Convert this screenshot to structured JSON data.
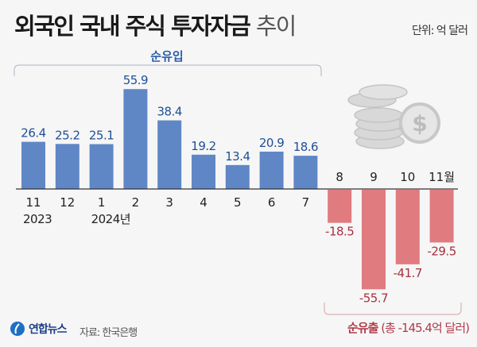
{
  "header": {
    "title_bold": "외국인 국내 주식 투자자금",
    "title_light": "추이",
    "unit": "단위: 억 달러"
  },
  "annotations": {
    "inflow": "순유입",
    "outflow_bold": "순유출",
    "outflow_total": "(총 -145.4억 달러)"
  },
  "footer": {
    "logo": "연합뉴스",
    "source": "자료: 한국은행"
  },
  "colors": {
    "positive": "#5f87c6",
    "negative": "#e07b7f",
    "positive_label": "#1f4f96",
    "negative_label": "#a8303f"
  },
  "chart_data": {
    "type": "bar",
    "title": "외국인 국내 주식 투자자금 추이",
    "unit": "억 달러",
    "categories": [
      "11",
      "12",
      "1",
      "2",
      "3",
      "4",
      "5",
      "6",
      "7",
      "8",
      "9",
      "10",
      "11월"
    ],
    "year_labels": {
      "0": "2023",
      "2": "2024년"
    },
    "values": [
      26.4,
      25.2,
      25.1,
      55.9,
      38.4,
      19.2,
      13.4,
      20.9,
      18.6,
      -18.5,
      -55.7,
      -41.7,
      -29.5
    ],
    "value_labels": [
      "26.4",
      "25.2",
      "25.1",
      "55.9",
      "38.4",
      "19.2",
      "13.4",
      "20.9",
      "18.6",
      "-18.5",
      "-55.7",
      "-41.7",
      "-29.5"
    ],
    "grid": false
  }
}
